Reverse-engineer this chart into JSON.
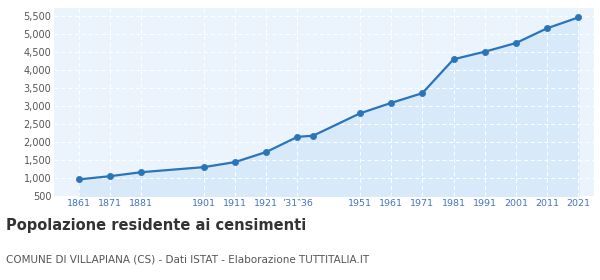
{
  "years": [
    1861,
    1871,
    1881,
    1901,
    1911,
    1921,
    1931,
    1936,
    1951,
    1961,
    1971,
    1981,
    1991,
    2001,
    2011,
    2021
  ],
  "population": [
    960,
    1050,
    1160,
    1300,
    1440,
    1720,
    2140,
    2170,
    2790,
    3080,
    3350,
    4290,
    4500,
    4740,
    5150,
    5450
  ],
  "line_color": "#2A74BA",
  "fill_color": "#D8EAFA",
  "marker_color": "#2A74BA",
  "bg_color": "#EBF4FC",
  "grid_color": "#FFFFFF",
  "ylim": [
    500,
    5700
  ],
  "yticks": [
    500,
    1000,
    1500,
    2000,
    2500,
    3000,
    3500,
    4000,
    4500,
    5000,
    5500
  ],
  "xlim": [
    1853,
    2026
  ],
  "special_ticks": [
    1861,
    1871,
    1881,
    1901,
    1911,
    1921,
    1931,
    1951,
    1961,
    1971,
    1981,
    1991,
    2001,
    2011,
    2021
  ],
  "special_labels": [
    "1861",
    "1871",
    "1881",
    "1901",
    "1911",
    "1921",
    "’31‶36",
    "1951",
    "1961",
    "1971",
    "1981",
    "1991",
    "2001",
    "2011",
    "2021"
  ],
  "title": "Popolazione residente ai censimenti",
  "subtitle": "COMUNE DI VILLAPIANA (CS) - Dati ISTAT - Elaborazione TUTTITALIA.IT",
  "title_fontsize": 10.5,
  "subtitle_fontsize": 7.5,
  "title_color": "#333333",
  "subtitle_color": "#555555",
  "tick_color": "#4472C4",
  "ytick_color": "#555555",
  "ytick_fontsize": 7,
  "xtick_fontsize": 6.8
}
